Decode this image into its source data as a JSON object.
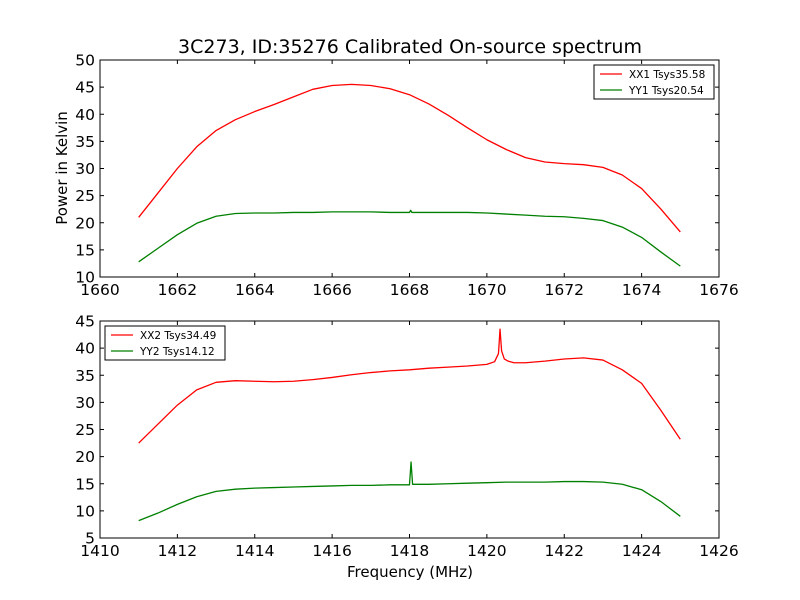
{
  "figure": {
    "title": "3C273, ID:35276 Calibrated On-source spectrum",
    "ylabel": "Power in Kelvin",
    "xlabel": "Frequency (MHz)"
  },
  "chart_data": [
    {
      "type": "line",
      "xlim": [
        1660,
        1676
      ],
      "ylim": [
        10,
        50
      ],
      "xticks": [
        1660,
        1662,
        1664,
        1666,
        1668,
        1670,
        1672,
        1674,
        1676
      ],
      "yticks": [
        10,
        15,
        20,
        25,
        30,
        35,
        40,
        45,
        50
      ],
      "legend_position": "top-right",
      "series": [
        {
          "name": "XX1 Tsys35.58",
          "color": "#ff0000",
          "points": [
            [
              1661.0,
              21.0
            ],
            [
              1661.5,
              25.5
            ],
            [
              1662.0,
              30.0
            ],
            [
              1662.5,
              34.0
            ],
            [
              1663.0,
              37.0
            ],
            [
              1663.5,
              39.0
            ],
            [
              1664.0,
              40.5
            ],
            [
              1664.5,
              41.8
            ],
            [
              1665.0,
              43.2
            ],
            [
              1665.5,
              44.6
            ],
            [
              1666.0,
              45.3
            ],
            [
              1666.5,
              45.5
            ],
            [
              1667.0,
              45.3
            ],
            [
              1667.5,
              44.7
            ],
            [
              1668.0,
              43.6
            ],
            [
              1668.5,
              41.9
            ],
            [
              1669.0,
              39.8
            ],
            [
              1669.5,
              37.5
            ],
            [
              1670.0,
              35.3
            ],
            [
              1670.5,
              33.5
            ],
            [
              1671.0,
              32.0
            ],
            [
              1671.5,
              31.2
            ],
            [
              1672.0,
              30.9
            ],
            [
              1672.5,
              30.7
            ],
            [
              1673.0,
              30.2
            ],
            [
              1673.5,
              28.8
            ],
            [
              1674.0,
              26.3
            ],
            [
              1674.5,
              22.5
            ],
            [
              1675.0,
              18.3
            ]
          ]
        },
        {
          "name": "YY1 Tsys20.54",
          "color": "#008000",
          "points": [
            [
              1661.0,
              12.8
            ],
            [
              1661.5,
              15.3
            ],
            [
              1662.0,
              17.8
            ],
            [
              1662.5,
              19.9
            ],
            [
              1663.0,
              21.2
            ],
            [
              1663.5,
              21.7
            ],
            [
              1664.0,
              21.8
            ],
            [
              1664.5,
              21.8
            ],
            [
              1665.0,
              21.9
            ],
            [
              1665.5,
              21.9
            ],
            [
              1666.0,
              22.0
            ],
            [
              1666.5,
              22.0
            ],
            [
              1667.0,
              22.0
            ],
            [
              1667.5,
              21.9
            ],
            [
              1668.0,
              21.9
            ],
            [
              1668.03,
              22.3
            ],
            [
              1668.06,
              21.9
            ],
            [
              1668.5,
              21.9
            ],
            [
              1669.0,
              21.9
            ],
            [
              1669.5,
              21.9
            ],
            [
              1670.0,
              21.8
            ],
            [
              1670.5,
              21.6
            ],
            [
              1671.0,
              21.4
            ],
            [
              1671.5,
              21.2
            ],
            [
              1672.0,
              21.1
            ],
            [
              1672.5,
              20.8
            ],
            [
              1673.0,
              20.4
            ],
            [
              1673.5,
              19.2
            ],
            [
              1674.0,
              17.3
            ],
            [
              1674.5,
              14.6
            ],
            [
              1675.0,
              12.0
            ]
          ]
        }
      ]
    },
    {
      "type": "line",
      "xlim": [
        1410,
        1426
      ],
      "ylim": [
        5,
        45
      ],
      "xticks": [
        1410,
        1412,
        1414,
        1416,
        1418,
        1420,
        1422,
        1424,
        1426
      ],
      "yticks": [
        5,
        10,
        15,
        20,
        25,
        30,
        35,
        40,
        45
      ],
      "legend_position": "top-left",
      "series": [
        {
          "name": "XX2 Tsys34.49",
          "color": "#ff0000",
          "points": [
            [
              1411.0,
              22.5
            ],
            [
              1411.5,
              26.0
            ],
            [
              1412.0,
              29.5
            ],
            [
              1412.5,
              32.3
            ],
            [
              1413.0,
              33.7
            ],
            [
              1413.5,
              34.0
            ],
            [
              1414.0,
              33.9
            ],
            [
              1414.5,
              33.8
            ],
            [
              1415.0,
              33.9
            ],
            [
              1415.5,
              34.2
            ],
            [
              1416.0,
              34.6
            ],
            [
              1416.5,
              35.1
            ],
            [
              1417.0,
              35.5
            ],
            [
              1417.5,
              35.8
            ],
            [
              1418.0,
              36.0
            ],
            [
              1418.5,
              36.3
            ],
            [
              1419.0,
              36.5
            ],
            [
              1419.5,
              36.7
            ],
            [
              1420.0,
              37.0
            ],
            [
              1420.2,
              37.5
            ],
            [
              1420.3,
              39.0
            ],
            [
              1420.34,
              43.5
            ],
            [
              1420.38,
              39.5
            ],
            [
              1420.45,
              38.0
            ],
            [
              1420.55,
              37.6
            ],
            [
              1420.7,
              37.3
            ],
            [
              1421.0,
              37.3
            ],
            [
              1421.5,
              37.6
            ],
            [
              1422.0,
              38.0
            ],
            [
              1422.5,
              38.2
            ],
            [
              1423.0,
              37.8
            ],
            [
              1423.5,
              36.0
            ],
            [
              1424.0,
              33.5
            ],
            [
              1424.5,
              28.5
            ],
            [
              1425.0,
              23.2
            ]
          ]
        },
        {
          "name": "YY2 Tsys14.12",
          "color": "#008000",
          "points": [
            [
              1411.0,
              8.2
            ],
            [
              1411.5,
              9.6
            ],
            [
              1412.0,
              11.2
            ],
            [
              1412.5,
              12.6
            ],
            [
              1413.0,
              13.6
            ],
            [
              1413.5,
              14.0
            ],
            [
              1414.0,
              14.2
            ],
            [
              1414.5,
              14.3
            ],
            [
              1415.0,
              14.4
            ],
            [
              1415.5,
              14.5
            ],
            [
              1416.0,
              14.6
            ],
            [
              1416.5,
              14.7
            ],
            [
              1417.0,
              14.7
            ],
            [
              1417.5,
              14.8
            ],
            [
              1418.0,
              14.8
            ],
            [
              1418.04,
              19.0
            ],
            [
              1418.08,
              14.9
            ],
            [
              1418.5,
              14.9
            ],
            [
              1419.0,
              15.0
            ],
            [
              1419.5,
              15.1
            ],
            [
              1420.0,
              15.2
            ],
            [
              1420.5,
              15.3
            ],
            [
              1421.0,
              15.3
            ],
            [
              1421.5,
              15.3
            ],
            [
              1422.0,
              15.4
            ],
            [
              1422.5,
              15.4
            ],
            [
              1423.0,
              15.3
            ],
            [
              1423.5,
              14.9
            ],
            [
              1424.0,
              13.9
            ],
            [
              1424.5,
              11.7
            ],
            [
              1425.0,
              9.0
            ]
          ]
        }
      ]
    }
  ]
}
